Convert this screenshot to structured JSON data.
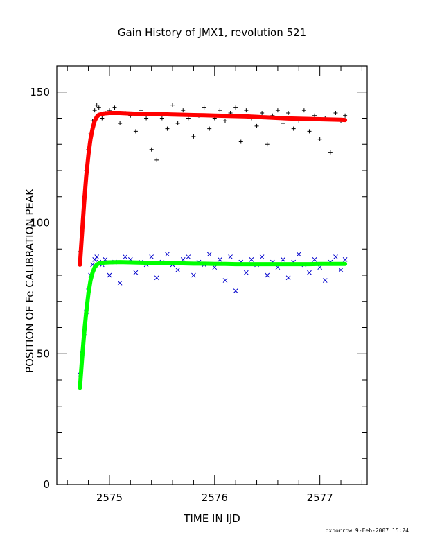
{
  "chart_data": {
    "type": "scatter",
    "title": "Gain History of JMX1, revolution 521",
    "xlabel": "TIME IN IJD",
    "ylabel": "POSITION OF Fe CALIBRATION PEAK",
    "xlim": [
      2574.5,
      2577.45
    ],
    "ylim": [
      0,
      160
    ],
    "xticks": [
      2575,
      2576,
      2577
    ],
    "yticks": [
      0,
      50,
      100,
      150
    ],
    "grid": false,
    "series": [
      {
        "color": "#000000",
        "marker": "plus",
        "x": [
          2574.72,
          2574.74,
          2574.76,
          2574.78,
          2574.8,
          2574.82,
          2574.84,
          2574.86,
          2574.88,
          2574.9,
          2574.93,
          2574.96,
          2575.0,
          2575.05,
          2575.1,
          2575.15,
          2575.2,
          2575.25,
          2575.3,
          2575.35,
          2575.4,
          2575.45,
          2575.5,
          2575.55,
          2575.6,
          2575.65,
          2575.7,
          2575.75,
          2575.8,
          2575.85,
          2575.9,
          2575.95,
          2576.0,
          2576.05,
          2576.1,
          2576.15,
          2576.2,
          2576.25,
          2576.3,
          2576.35,
          2576.4,
          2576.45,
          2576.5,
          2576.55,
          2576.6,
          2576.65,
          2576.7,
          2576.75,
          2576.8,
          2576.85,
          2576.9,
          2576.95,
          2577.0,
          2577.05,
          2577.1,
          2577.15,
          2577.2,
          2577.24
        ],
        "y": [
          89,
          100,
          110,
          120,
          128,
          134,
          139,
          143,
          145,
          144,
          140,
          142,
          143,
          144,
          138,
          142,
          141,
          135,
          143,
          140,
          128,
          124,
          140,
          136,
          145,
          138,
          143,
          140,
          133,
          141,
          144,
          136,
          140,
          143,
          139,
          142,
          144,
          131,
          143,
          140,
          137,
          142,
          130,
          141,
          143,
          138,
          142,
          136,
          139,
          143,
          135,
          141,
          132,
          140,
          127,
          142,
          139,
          141
        ]
      },
      {
        "color": "#0000cc",
        "marker": "cross",
        "x": [
          2574.72,
          2574.74,
          2574.76,
          2574.78,
          2574.8,
          2574.82,
          2574.84,
          2574.86,
          2574.88,
          2574.9,
          2574.93,
          2574.96,
          2575.0,
          2575.05,
          2575.1,
          2575.15,
          2575.2,
          2575.25,
          2575.3,
          2575.35,
          2575.4,
          2575.45,
          2575.5,
          2575.55,
          2575.6,
          2575.65,
          2575.7,
          2575.75,
          2575.8,
          2575.85,
          2575.9,
          2575.95,
          2576.0,
          2576.05,
          2576.1,
          2576.15,
          2576.2,
          2576.25,
          2576.3,
          2576.35,
          2576.4,
          2576.45,
          2576.5,
          2576.55,
          2576.6,
          2576.65,
          2576.7,
          2576.75,
          2576.8,
          2576.85,
          2576.9,
          2576.95,
          2577.0,
          2577.05,
          2577.1,
          2577.15,
          2577.2,
          2577.24
        ],
        "y": [
          42,
          50,
          58,
          66,
          74,
          80,
          84,
          86,
          87,
          85,
          84,
          86,
          80,
          85,
          77,
          87,
          86,
          81,
          85,
          84,
          87,
          79,
          85,
          88,
          84,
          82,
          86,
          87,
          80,
          85,
          84,
          88,
          83,
          86,
          78,
          87,
          74,
          85,
          81,
          86,
          84,
          87,
          80,
          85,
          83,
          86,
          79,
          85,
          88,
          84,
          81,
          86,
          83,
          78,
          85,
          87,
          82,
          86
        ]
      },
      {
        "color": "#ff0000",
        "marker": "fit",
        "x": [
          2574.72,
          2574.74,
          2574.76,
          2574.78,
          2574.8,
          2574.82,
          2574.84,
          2574.86,
          2574.88,
          2574.9,
          2574.95,
          2575.0,
          2575.1,
          2575.2,
          2575.3,
          2575.4,
          2575.5,
          2575.6,
          2575.7,
          2575.8,
          2575.9,
          2576.0,
          2576.1,
          2576.2,
          2576.3,
          2576.4,
          2576.5,
          2576.6,
          2576.7,
          2576.8,
          2576.9,
          2577.0,
          2577.1,
          2577.2,
          2577.24
        ],
        "y": [
          84,
          96,
          108,
          118,
          126,
          132,
          136,
          139,
          140.5,
          141.3,
          141.8,
          142,
          142,
          141.8,
          141.6,
          141.6,
          141.5,
          141.4,
          141.3,
          141.2,
          141.1,
          141,
          140.9,
          140.8,
          140.7,
          140.5,
          140.3,
          140.1,
          139.9,
          139.8,
          139.7,
          139.6,
          139.5,
          139.4,
          139.3
        ]
      },
      {
        "color": "#00ff00",
        "marker": "fit",
        "x": [
          2574.72,
          2574.74,
          2574.76,
          2574.78,
          2574.8,
          2574.82,
          2574.84,
          2574.86,
          2574.88,
          2574.9,
          2574.95,
          2575.0,
          2575.1,
          2575.2,
          2575.3,
          2575.4,
          2575.5,
          2575.6,
          2575.7,
          2575.8,
          2575.9,
          2576.0,
          2576.1,
          2576.2,
          2576.3,
          2576.4,
          2576.5,
          2576.6,
          2576.7,
          2576.8,
          2576.9,
          2577.0,
          2577.1,
          2577.2,
          2577.24
        ],
        "y": [
          37,
          48,
          58,
          66,
          73,
          78,
          81,
          83,
          84,
          84.5,
          84.8,
          84.9,
          85,
          84.9,
          84.8,
          84.7,
          84.6,
          84.5,
          84.5,
          84.4,
          84.4,
          84.3,
          84.3,
          84.2,
          84.2,
          84.2,
          84.2,
          84.2,
          84.2,
          84.2,
          84.2,
          84.3,
          84.3,
          84.3,
          84.3
        ]
      }
    ]
  },
  "footer": "oxborrow  9-Feb-2007 15:24"
}
